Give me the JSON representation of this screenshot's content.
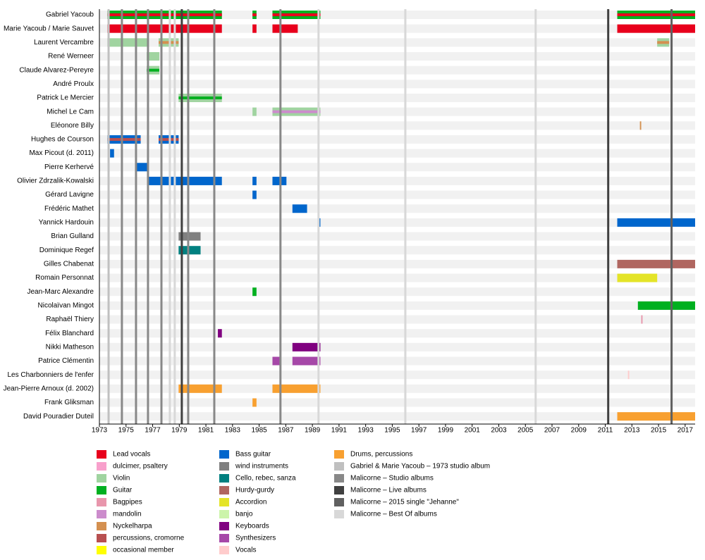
{
  "chart_data": {
    "type": "timeline",
    "xlim": [
      1973,
      2017.75
    ],
    "xticks": [
      1973,
      1975,
      1977,
      1979,
      1981,
      1983,
      1985,
      1987,
      1989,
      1991,
      1993,
      1995,
      1997,
      1999,
      2001,
      2003,
      2005,
      2007,
      2009,
      2011,
      2013,
      2015,
      2017
    ],
    "legend": [
      {
        "name": "Lead vocals",
        "color": "#e8001c"
      },
      {
        "name": "dulcimer, psaltery",
        "color": "#f8a0cc"
      },
      {
        "name": "Violin",
        "color": "#a0d4a0"
      },
      {
        "name": "Guitar",
        "color": "#00b020"
      },
      {
        "name": "Bagpipes",
        "color": "#e896ac"
      },
      {
        "name": "mandolin",
        "color": "#cc8ccc"
      },
      {
        "name": "Nyckelharpa",
        "color": "#d49050"
      },
      {
        "name": "percussions, cromorne",
        "color": "#b85050"
      },
      {
        "name": "occasional member",
        "color": "#ffff00"
      },
      {
        "name": "Bass guitar",
        "color": "#0066cc"
      },
      {
        "name": "wind instruments",
        "color": "#808080"
      },
      {
        "name": "Cello, rebec, sanza",
        "color": "#008080"
      },
      {
        "name": "Hurdy-gurdy",
        "color": "#b06660"
      },
      {
        "name": "Accordion",
        "color": "#e4e428"
      },
      {
        "name": "banjo",
        "color": "#ccf4aa"
      },
      {
        "name": "Keyboards",
        "color": "#800080"
      },
      {
        "name": "Synthesizers",
        "color": "#a648a8"
      },
      {
        "name": "Vocals",
        "color": "#ffcccc"
      },
      {
        "name": "Drums, percussions",
        "color": "#f8a030"
      },
      {
        "name": "Gabriel & Marie Yacoub – 1973 studio album",
        "color": "#c0c0c0"
      },
      {
        "name": "Malicorne – Studio albums",
        "color": "#888888"
      },
      {
        "name": "Malicorne – Live albums",
        "color": "#404040"
      },
      {
        "name": "Malicorne – 2015 single \"Jehanne\"",
        "color": "#606060"
      },
      {
        "name": "Malicorne – Best Of albums",
        "color": "#d8d8d8"
      }
    ],
    "albums": [
      {
        "kind": "Gabriel & Marie Yacoub – 1973 studio album",
        "year": 1973.69
      },
      {
        "kind": "Malicorne – Studio albums",
        "year": 1974.69
      },
      {
        "kind": "Malicorne – Studio albums",
        "year": 1975.75
      },
      {
        "kind": "Malicorne – Studio albums",
        "year": 1976.65
      },
      {
        "kind": "Malicorne – Studio albums",
        "year": 1977.66
      },
      {
        "kind": "Malicorne – Best Of albums",
        "year": 1978.29
      },
      {
        "kind": "Malicorne – Best Of albums",
        "year": 1978.66
      },
      {
        "kind": "Malicorne – Live albums",
        "year": 1979.19
      },
      {
        "kind": "Malicorne – Studio albums",
        "year": 1979.67
      },
      {
        "kind": "Malicorne – Studio albums",
        "year": 1981.63
      },
      {
        "kind": "Malicorne – Studio albums",
        "year": 1986.6
      },
      {
        "kind": "Malicorne – Best Of albums",
        "year": 1989.46
      },
      {
        "kind": "Malicorne – Best Of albums",
        "year": 1995.98
      },
      {
        "kind": "Malicorne – Best Of albums",
        "year": 2005.77
      },
      {
        "kind": "Malicorne – Live albums",
        "year": 2011.22
      },
      {
        "kind": "Malicorne – 2015 single \"Jehanne\"",
        "year": 2015.98
      }
    ],
    "members": [
      {
        "name": "Gabriel Yacoub",
        "periods": [
          {
            "role": "Guitar",
            "start": 1973.6,
            "end": 1982.2
          },
          {
            "role": "Guitar",
            "start": 1984.5,
            "end": 1984.8
          },
          {
            "role": "Guitar",
            "start": 1986.0,
            "end": 1989.6
          },
          {
            "role": "Guitar",
            "start": 2011.9,
            "end": 2017.75
          }
        ],
        "secondary": [
          {
            "role": "Lead vocals",
            "start": 1973.6,
            "end": 1982.2
          },
          {
            "role": "Lead vocals",
            "start": 1984.5,
            "end": 1984.8
          },
          {
            "role": "Lead vocals",
            "start": 1986.0,
            "end": 1989.6
          },
          {
            "role": "Lead vocals",
            "start": 2011.9,
            "end": 2017.75
          }
        ]
      },
      {
        "name": "Marie Yacoub / Marie Sauvet",
        "periods": [
          {
            "role": "Lead vocals",
            "start": 1973.6,
            "end": 1982.2
          },
          {
            "role": "Lead vocals",
            "start": 1984.5,
            "end": 1984.8
          },
          {
            "role": "Lead vocals",
            "start": 1986.0,
            "end": 1987.9
          },
          {
            "role": "Lead vocals",
            "start": 2011.9,
            "end": 2017.75
          }
        ]
      },
      {
        "name": "Laurent Vercambre",
        "periods": [
          {
            "role": "Violin",
            "start": 1973.6,
            "end": 1976.6
          },
          {
            "role": "Violin",
            "start": 1977.45,
            "end": 1978.95
          },
          {
            "role": "Violin",
            "start": 2014.9,
            "end": 2015.8
          }
        ],
        "secondary": [
          {
            "role": "Nyckelharpa",
            "start": 1977.45,
            "end": 1978.95
          },
          {
            "role": "Nyckelharpa",
            "start": 2014.9,
            "end": 2015.8
          }
        ]
      },
      {
        "name": "René Werneer",
        "periods": [
          {
            "role": "Violin",
            "start": 1976.55,
            "end": 1977.5
          }
        ]
      },
      {
        "name": "Claude Alvarez-Pereyre",
        "periods": [
          {
            "role": "Violin",
            "start": 1976.55,
            "end": 1977.5
          }
        ],
        "secondary": [
          {
            "role": "Guitar",
            "start": 1976.55,
            "end": 1977.5
          }
        ]
      },
      {
        "name": "André Proulx",
        "periods": []
      },
      {
        "name": "Patrick Le Mercier",
        "periods": [
          {
            "role": "Violin",
            "start": 1978.95,
            "end": 1982.2
          }
        ],
        "secondary": [
          {
            "role": "Guitar",
            "start": 1978.95,
            "end": 1982.2
          }
        ]
      },
      {
        "name": "Michel Le Cam",
        "periods": [
          {
            "role": "Violin",
            "start": 1984.5,
            "end": 1984.8
          },
          {
            "role": "Violin",
            "start": 1986.0,
            "end": 1989.6
          }
        ],
        "secondary": [
          {
            "role": "mandolin",
            "start": 1986.0,
            "end": 1989.6
          }
        ]
      },
      {
        "name": "Eléonore Billy",
        "periods": [
          {
            "role": "Nyckelharpa",
            "start": 2013.6,
            "end": 2013.7
          }
        ]
      },
      {
        "name": "Hughes de Courson",
        "periods": [
          {
            "role": "Bass guitar",
            "start": 1973.6,
            "end": 1976.1
          },
          {
            "role": "Bass guitar",
            "start": 1977.45,
            "end": 1978.95
          }
        ],
        "secondary": [
          {
            "role": "percussions, cromorne",
            "start": 1973.6,
            "end": 1976.1
          },
          {
            "role": "percussions, cromorne",
            "start": 1977.45,
            "end": 1978.95
          }
        ]
      },
      {
        "name": "Max Picout (d. 2011)",
        "periods": [
          {
            "role": "Bass guitar",
            "start": 1973.8,
            "end": 1974.1
          }
        ]
      },
      {
        "name": "Pierre Kerhervé",
        "periods": [
          {
            "role": "Bass guitar",
            "start": 1975.75,
            "end": 1976.65
          }
        ]
      },
      {
        "name": "Olivier Zdrzalik-Kowalski",
        "periods": [
          {
            "role": "Bass guitar",
            "start": 1976.65,
            "end": 1982.2
          },
          {
            "role": "Bass guitar",
            "start": 1984.5,
            "end": 1984.8
          },
          {
            "role": "Bass guitar",
            "start": 1986.0,
            "end": 1987.05
          }
        ]
      },
      {
        "name": "Gérard Lavigne",
        "periods": [
          {
            "role": "Bass guitar",
            "start": 1984.5,
            "end": 1984.8
          }
        ]
      },
      {
        "name": "Frédéric Mathet",
        "periods": [
          {
            "role": "Bass guitar",
            "start": 1987.5,
            "end": 1988.6
          }
        ]
      },
      {
        "name": "Yannick Hardouin",
        "periods": [
          {
            "role": "Bass guitar",
            "start": 1989.4,
            "end": 1989.6
          },
          {
            "role": "Bass guitar",
            "start": 2011.9,
            "end": 2017.75
          }
        ]
      },
      {
        "name": "Brian Gulland",
        "periods": [
          {
            "role": "wind instruments",
            "start": 1978.95,
            "end": 1980.6
          }
        ]
      },
      {
        "name": "Dominique Regef",
        "periods": [
          {
            "role": "Cello, rebec, sanza",
            "start": 1978.95,
            "end": 1980.6
          }
        ]
      },
      {
        "name": "Gilles Chabenat",
        "periods": [
          {
            "role": "Hurdy-gurdy",
            "start": 2011.9,
            "end": 2017.75
          }
        ]
      },
      {
        "name": "Romain Personnat",
        "periods": [
          {
            "role": "Accordion",
            "start": 2011.9,
            "end": 2014.9
          }
        ]
      },
      {
        "name": "Jean-Marc Alexandre",
        "periods": [
          {
            "role": "Guitar",
            "start": 1984.5,
            "end": 1984.8
          }
        ]
      },
      {
        "name": "Nicolaïvan Mingot",
        "periods": [
          {
            "role": "Guitar",
            "start": 2013.45,
            "end": 2017.75
          }
        ]
      },
      {
        "name": "Raphaël Thiery",
        "periods": [
          {
            "role": "Bagpipes",
            "start": 2013.7,
            "end": 2013.8
          }
        ]
      },
      {
        "name": "Félix Blanchard",
        "periods": [
          {
            "role": "Keyboards",
            "start": 1981.9,
            "end": 1982.2
          }
        ]
      },
      {
        "name": "Nikki Matheson",
        "periods": [
          {
            "role": "Keyboards",
            "start": 1987.5,
            "end": 1989.6
          }
        ]
      },
      {
        "name": "Patrice Clémentin",
        "periods": [
          {
            "role": "Synthesizers",
            "start": 1986.0,
            "end": 1986.6
          },
          {
            "role": "Synthesizers",
            "start": 1987.5,
            "end": 1989.6
          }
        ]
      },
      {
        "name": "Les Charbonniers de l'enfer",
        "periods": [
          {
            "role": "Vocals",
            "start": 2012.7,
            "end": 2012.8
          }
        ]
      },
      {
        "name": "Jean-Pierre Arnoux (d. 2002)",
        "periods": [
          {
            "role": "Drums, percussions",
            "start": 1978.95,
            "end": 1982.2
          },
          {
            "role": "Drums, percussions",
            "start": 1986.0,
            "end": 1989.6
          }
        ]
      },
      {
        "name": "Frank Gliksman",
        "periods": [
          {
            "role": "Drums, percussions",
            "start": 1984.5,
            "end": 1984.8
          }
        ]
      },
      {
        "name": "David Pouradier Duteil",
        "periods": [
          {
            "role": "Drums, percussions",
            "start": 2011.9,
            "end": 2017.75
          }
        ]
      }
    ]
  }
}
